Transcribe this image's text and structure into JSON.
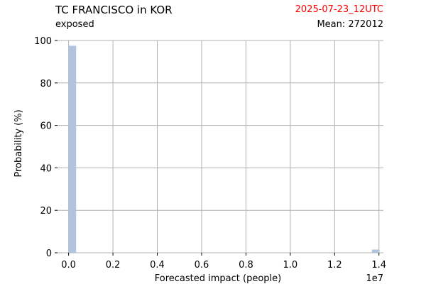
{
  "header": {
    "title": "TC FRANCISCO in KOR",
    "subtitle": "exposed",
    "date": "2025-07-23_12UTC",
    "mean": "Mean: 272012"
  },
  "colors": {
    "date": "#ff0000",
    "bar": "#b0c4de",
    "grid": "#b0b0b0"
  },
  "chart_data": {
    "type": "bar",
    "title": "TC FRANCISCO in KOR",
    "xlabel": "Forecasted impact (people)",
    "ylabel": "Probability (%)",
    "x_offset_label": "1e7",
    "xlim": [
      -0.05,
      1.42
    ],
    "ylim": [
      0,
      100
    ],
    "x_ticks": [
      0.0,
      0.2,
      0.4,
      0.6,
      0.8,
      1.0,
      1.2,
      1.4
    ],
    "x_tick_labels": [
      "0.0",
      "0.2",
      "0.4",
      "0.6",
      "0.8",
      "1.0",
      "1.2",
      "1.4"
    ],
    "y_ticks": [
      0,
      20,
      40,
      60,
      80,
      100
    ],
    "y_tick_labels": [
      "0",
      "20",
      "40",
      "60",
      "80",
      "100"
    ],
    "grid": true,
    "bins": [
      {
        "x_start": 0.0,
        "x_end": 0.034,
        "value": 97.5
      },
      {
        "x_start": 1.368,
        "x_end": 1.402,
        "value": 1.5
      }
    ]
  }
}
